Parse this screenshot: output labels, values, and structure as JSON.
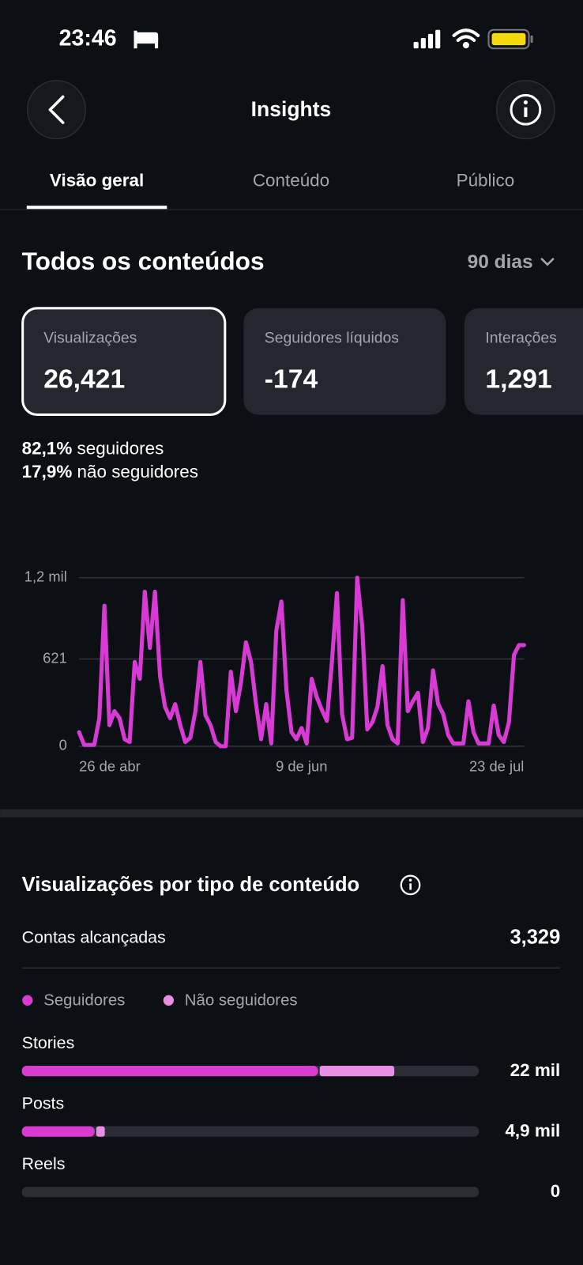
{
  "status_bar": {
    "time": "23:46"
  },
  "header": {
    "title": "Insights"
  },
  "tabs": [
    "Visão geral",
    "Conteúdo",
    "Público"
  ],
  "section": {
    "title": "Todos os conteúdos",
    "period": "90 dias"
  },
  "cards": [
    {
      "label": "Visualizações",
      "value": "26,421"
    },
    {
      "label": "Seguidores líquidos",
      "value": "-174"
    },
    {
      "label": "Interações",
      "value": "1,291"
    }
  ],
  "breakdown": [
    {
      "share": "82,1%",
      "label": "seguidores"
    },
    {
      "share": "17,9%",
      "label": "não seguidores"
    }
  ],
  "reach": {
    "label": "Contas alcançadas",
    "value": "3,329"
  },
  "chart_data": [
    {
      "type": "line",
      "categories": [
        "26 de abr",
        null,
        null,
        null,
        null,
        null,
        null,
        null,
        null,
        null,
        null,
        null,
        null,
        null,
        null,
        null,
        null,
        null,
        null,
        null,
        null,
        null,
        null,
        null,
        null,
        null,
        null,
        null,
        null,
        null,
        null,
        null,
        null,
        null,
        null,
        null,
        null,
        null,
        null,
        null,
        null,
        null,
        null,
        null,
        "9 de jun",
        null,
        null,
        null,
        null,
        null,
        null,
        null,
        null,
        null,
        null,
        null,
        null,
        null,
        null,
        null,
        null,
        null,
        null,
        null,
        null,
        null,
        null,
        null,
        null,
        null,
        null,
        null,
        null,
        null,
        null,
        null,
        null,
        null,
        null,
        null,
        null,
        null,
        null,
        null,
        null,
        null,
        null,
        null,
        "23 de jul"
      ],
      "values": [
        100,
        10,
        10,
        10,
        200,
        1000,
        150,
        250,
        200,
        50,
        30,
        600,
        480,
        1100,
        700,
        1100,
        500,
        280,
        200,
        300,
        150,
        30,
        60,
        250,
        600,
        220,
        150,
        30,
        0,
        0,
        530,
        250,
        450,
        740,
        600,
        300,
        50,
        300,
        20,
        820,
        1030,
        400,
        100,
        50,
        130,
        20,
        480,
        350,
        260,
        180,
        600,
        1090,
        230,
        50,
        60,
        1200,
        850,
        120,
        170,
        280,
        570,
        150,
        50,
        20,
        1040,
        250,
        320,
        380,
        30,
        130,
        540,
        300,
        230,
        80,
        20,
        20,
        20,
        320,
        100,
        20,
        20,
        20,
        290,
        80,
        30,
        170,
        650,
        720,
        720
      ],
      "color": "#d93ad6",
      "ylim": [
        0,
        1200
      ],
      "yticks": [
        0,
        621,
        {
          "value": 1200,
          "label": "1,2 mil"
        }
      ],
      "grid": true
    },
    {
      "type": "stacked_barh",
      "title": "Visualizações por tipo de conteúdo",
      "categories": [
        "Stories",
        "Posts",
        "Reels"
      ],
      "series": [
        {
          "name": "Seguidores",
          "color": "#d93bd0",
          "values": [
            17500,
            4300,
            0
          ]
        },
        {
          "name": "Não seguidores",
          "color": "#e88ee3",
          "values": [
            4500,
            600,
            0
          ]
        }
      ],
      "total_labels": [
        "22 mil",
        "4,9 mil",
        "0"
      ],
      "xlim": [
        0,
        27000
      ]
    }
  ]
}
